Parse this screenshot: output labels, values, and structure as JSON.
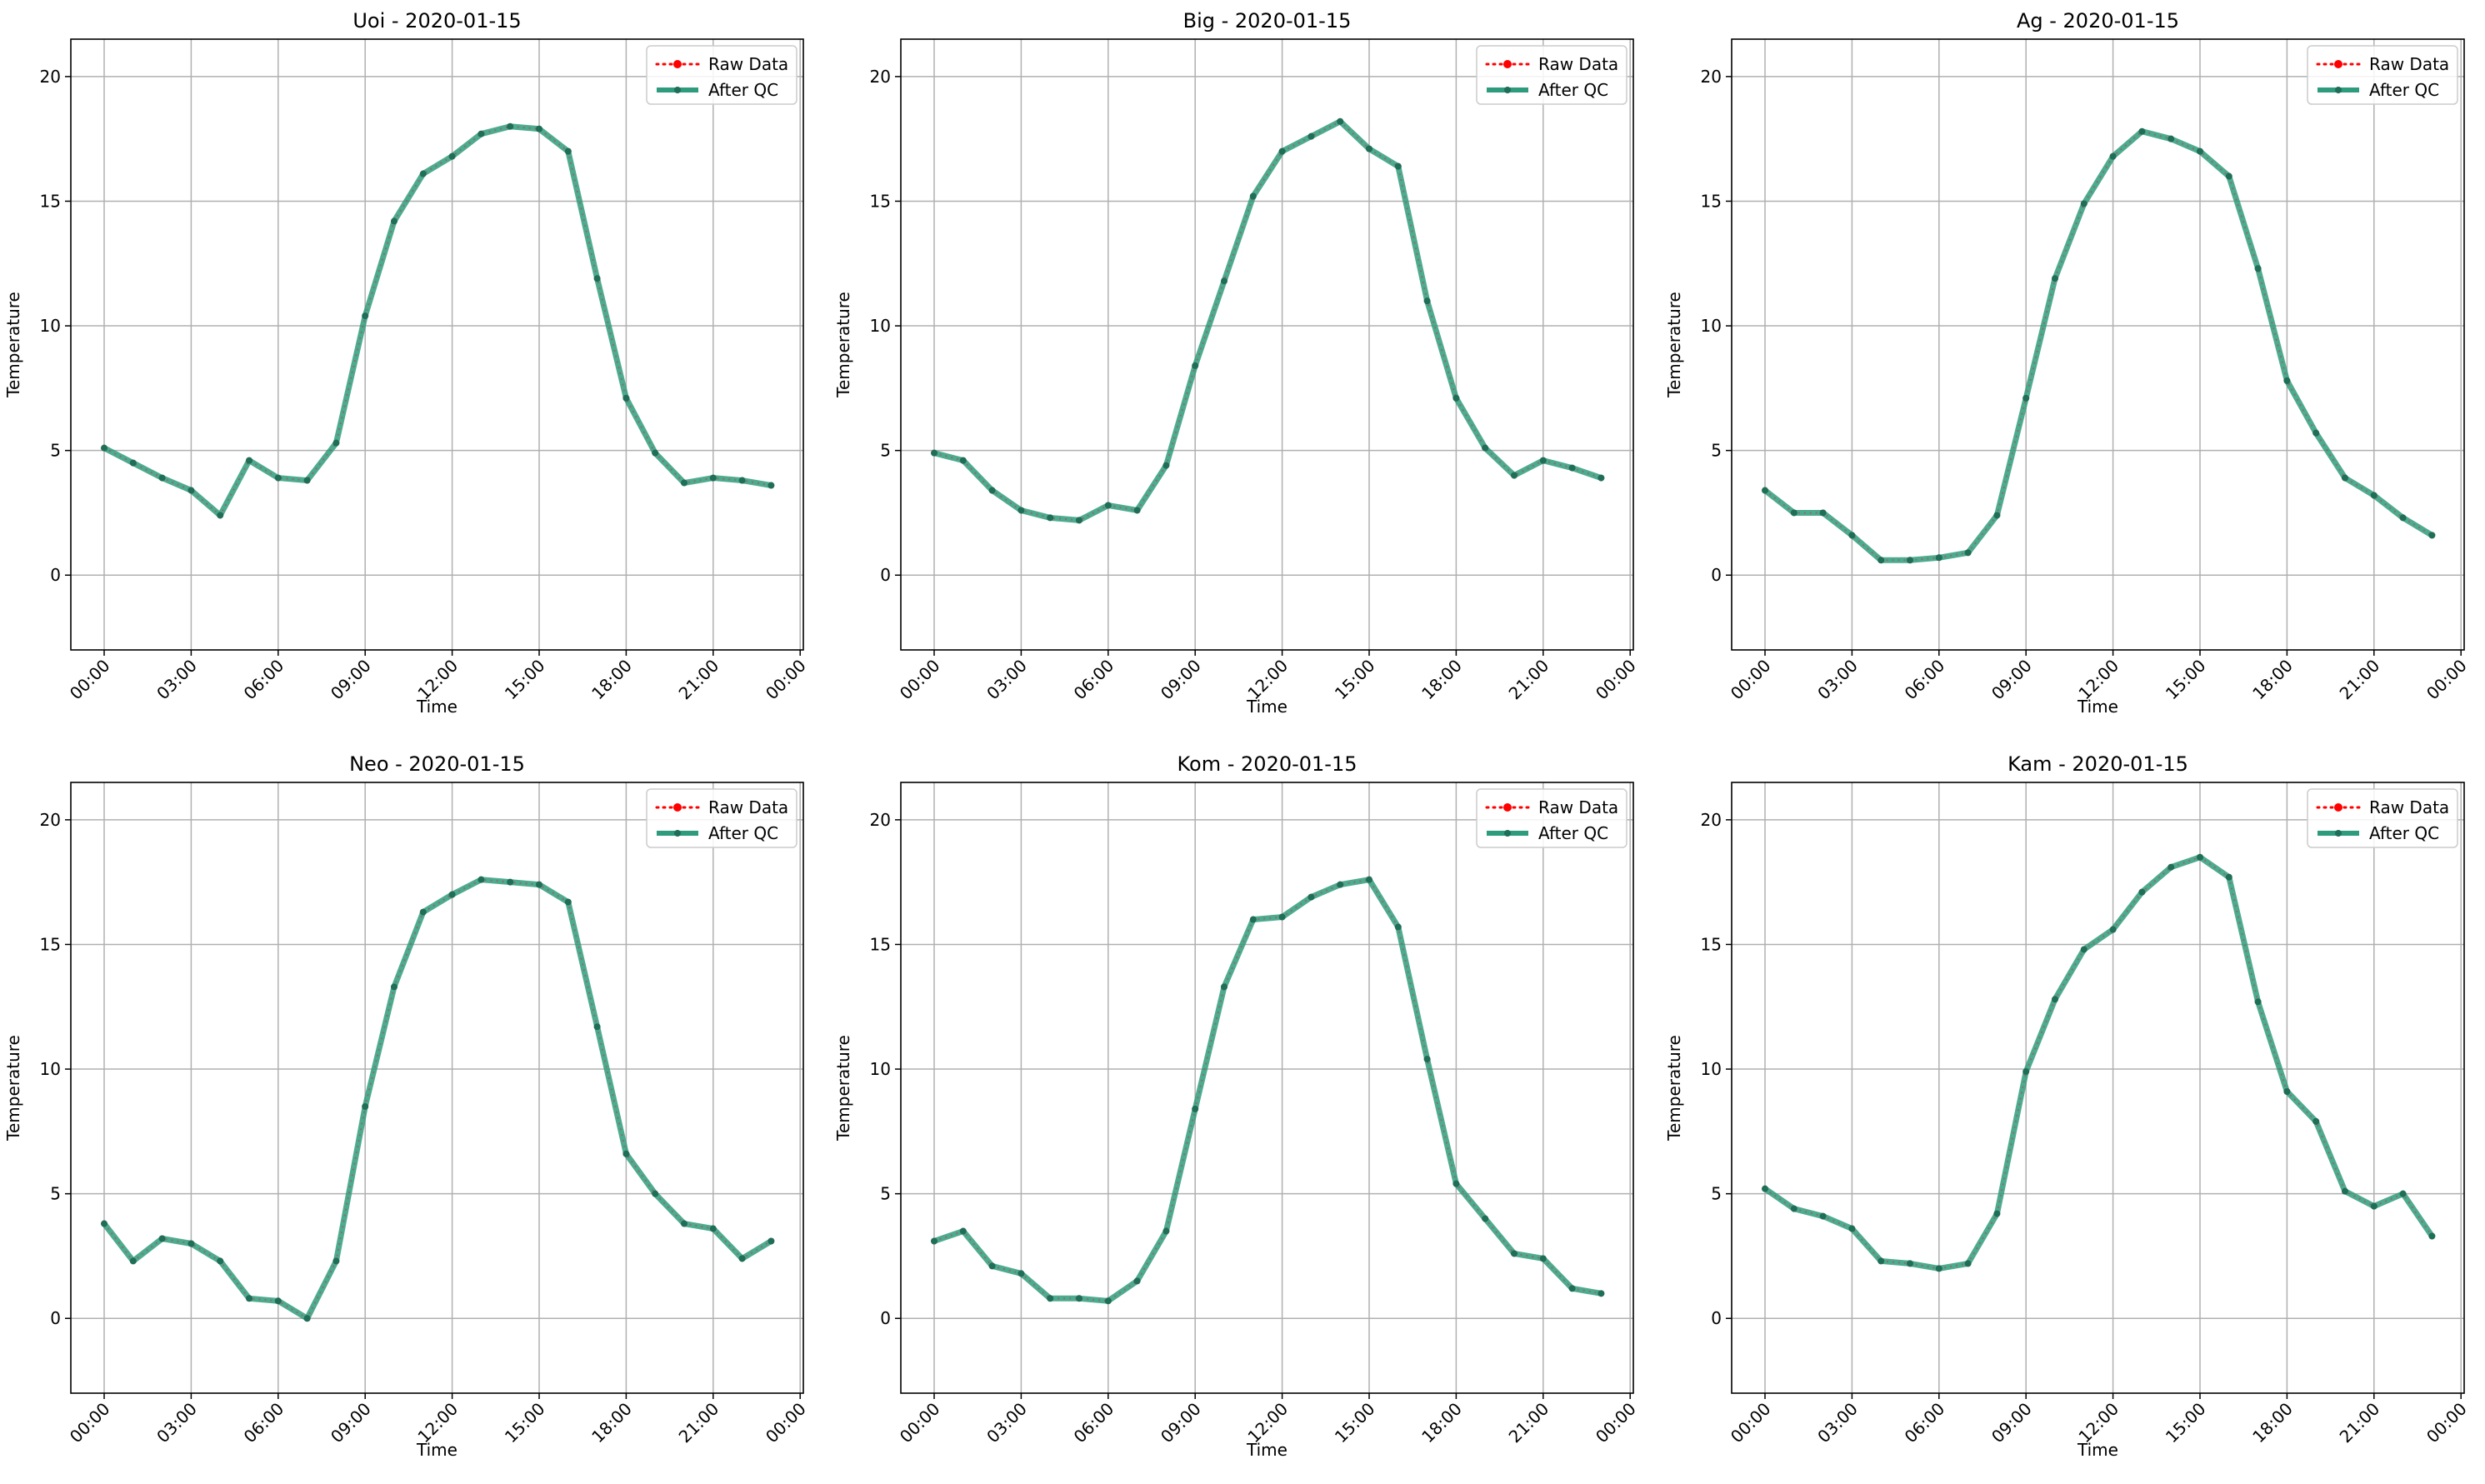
{
  "figure": {
    "series_names": [
      "Raw Data",
      "After QC"
    ],
    "colors": {
      "raw": "#ff0000",
      "qc": "#2e9c7c",
      "qc_marker": "#1f6e57",
      "grid": "#b0b0b0",
      "axis": "#000000"
    }
  },
  "chart_data": [
    {
      "type": "line",
      "title": "Uoi - 2020-01-15",
      "xlabel": "Time",
      "ylabel": "Temperature",
      "x_ticks": [
        "00:00",
        "03:00",
        "06:00",
        "09:00",
        "12:00",
        "15:00",
        "18:00",
        "21:00",
        "00:00"
      ],
      "y_ticks": [
        "0",
        "5",
        "10",
        "15",
        "20"
      ],
      "ylim": [
        -3,
        21.5
      ],
      "grid": true,
      "legend": "top-right",
      "x": [
        "00:00",
        "01:00",
        "02:00",
        "03:00",
        "04:00",
        "05:00",
        "06:00",
        "07:00",
        "08:00",
        "09:00",
        "10:00",
        "11:00",
        "12:00",
        "13:00",
        "14:00",
        "15:00",
        "16:00",
        "17:00",
        "18:00",
        "19:00",
        "20:00",
        "21:00",
        "22:00",
        "23:00"
      ],
      "series": [
        {
          "name": "Raw Data",
          "values": [
            5.1,
            4.5,
            3.9,
            3.4,
            2.4,
            4.6,
            3.9,
            3.8,
            5.3,
            10.4,
            14.2,
            16.1,
            16.8,
            17.7,
            18.0,
            17.9,
            17.0,
            11.9,
            7.1,
            4.9,
            3.7,
            3.9,
            3.8,
            3.6
          ]
        },
        {
          "name": "After QC",
          "values": [
            5.1,
            4.5,
            3.9,
            3.4,
            2.4,
            4.6,
            3.9,
            3.8,
            5.3,
            10.4,
            14.2,
            16.1,
            16.8,
            17.7,
            18.0,
            17.9,
            17.0,
            11.9,
            7.1,
            4.9,
            3.7,
            3.9,
            3.8,
            3.6
          ]
        }
      ]
    },
    {
      "type": "line",
      "title": "Big - 2020-01-15",
      "xlabel": "Time",
      "ylabel": "Temperature",
      "x_ticks": [
        "00:00",
        "03:00",
        "06:00",
        "09:00",
        "12:00",
        "15:00",
        "18:00",
        "21:00",
        "00:00"
      ],
      "y_ticks": [
        "0",
        "5",
        "10",
        "15",
        "20"
      ],
      "ylim": [
        -3,
        21.5
      ],
      "grid": true,
      "legend": "top-right",
      "x": [
        "00:00",
        "01:00",
        "02:00",
        "03:00",
        "04:00",
        "05:00",
        "06:00",
        "07:00",
        "08:00",
        "09:00",
        "10:00",
        "11:00",
        "12:00",
        "13:00",
        "14:00",
        "15:00",
        "16:00",
        "17:00",
        "18:00",
        "19:00",
        "20:00",
        "21:00",
        "22:00",
        "23:00"
      ],
      "series": [
        {
          "name": "Raw Data",
          "values": [
            4.9,
            4.6,
            3.4,
            2.6,
            2.3,
            2.2,
            2.8,
            2.6,
            4.4,
            8.4,
            11.8,
            15.2,
            17.0,
            17.6,
            18.2,
            17.1,
            16.4,
            11.0,
            7.1,
            5.1,
            4.0,
            4.6,
            4.3,
            3.9
          ]
        },
        {
          "name": "After QC",
          "values": [
            4.9,
            4.6,
            3.4,
            2.6,
            2.3,
            2.2,
            2.8,
            2.6,
            4.4,
            8.4,
            11.8,
            15.2,
            17.0,
            17.6,
            18.2,
            17.1,
            16.4,
            11.0,
            7.1,
            5.1,
            4.0,
            4.6,
            4.3,
            3.9
          ]
        }
      ]
    },
    {
      "type": "line",
      "title": "Ag - 2020-01-15",
      "xlabel": "Time",
      "ylabel": "Temperature",
      "x_ticks": [
        "00:00",
        "03:00",
        "06:00",
        "09:00",
        "12:00",
        "15:00",
        "18:00",
        "21:00",
        "00:00"
      ],
      "y_ticks": [
        "0",
        "5",
        "10",
        "15",
        "20"
      ],
      "ylim": [
        -3,
        21.5
      ],
      "grid": true,
      "legend": "top-right",
      "x": [
        "00:00",
        "01:00",
        "02:00",
        "03:00",
        "04:00",
        "05:00",
        "06:00",
        "07:00",
        "08:00",
        "09:00",
        "10:00",
        "11:00",
        "12:00",
        "13:00",
        "14:00",
        "15:00",
        "16:00",
        "17:00",
        "18:00",
        "19:00",
        "20:00",
        "21:00",
        "22:00",
        "23:00"
      ],
      "series": [
        {
          "name": "Raw Data",
          "values": [
            3.4,
            2.5,
            2.5,
            1.6,
            0.6,
            0.6,
            0.7,
            0.9,
            2.4,
            7.1,
            11.9,
            14.9,
            16.8,
            17.8,
            17.5,
            17.0,
            16.0,
            12.3,
            7.8,
            5.7,
            3.9,
            3.2,
            2.3,
            1.6
          ]
        },
        {
          "name": "After QC",
          "values": [
            3.4,
            2.5,
            2.5,
            1.6,
            0.6,
            0.6,
            0.7,
            0.9,
            2.4,
            7.1,
            11.9,
            14.9,
            16.8,
            17.8,
            17.5,
            17.0,
            16.0,
            12.3,
            7.8,
            5.7,
            3.9,
            3.2,
            2.3,
            1.6
          ]
        }
      ]
    },
    {
      "type": "line",
      "title": "Neo - 2020-01-15",
      "xlabel": "Time",
      "ylabel": "Temperature",
      "x_ticks": [
        "00:00",
        "03:00",
        "06:00",
        "09:00",
        "12:00",
        "15:00",
        "18:00",
        "21:00",
        "00:00"
      ],
      "y_ticks": [
        "0",
        "5",
        "10",
        "15",
        "20"
      ],
      "ylim": [
        -3,
        21.5
      ],
      "grid": true,
      "legend": "top-right",
      "x": [
        "00:00",
        "01:00",
        "02:00",
        "03:00",
        "04:00",
        "05:00",
        "06:00",
        "07:00",
        "08:00",
        "09:00",
        "10:00",
        "11:00",
        "12:00",
        "13:00",
        "14:00",
        "15:00",
        "16:00",
        "17:00",
        "18:00",
        "19:00",
        "20:00",
        "21:00",
        "22:00",
        "23:00"
      ],
      "series": [
        {
          "name": "Raw Data",
          "values": [
            3.8,
            2.3,
            3.2,
            3.0,
            2.3,
            0.8,
            0.7,
            0.0,
            2.3,
            8.5,
            13.3,
            16.3,
            17.0,
            17.6,
            17.5,
            17.4,
            16.7,
            11.7,
            6.6,
            5.0,
            3.8,
            3.6,
            2.4,
            3.1
          ]
        },
        {
          "name": "After QC",
          "values": [
            3.8,
            2.3,
            3.2,
            3.0,
            2.3,
            0.8,
            0.7,
            0.0,
            2.3,
            8.5,
            13.3,
            16.3,
            17.0,
            17.6,
            17.5,
            17.4,
            16.7,
            11.7,
            6.6,
            5.0,
            3.8,
            3.6,
            2.4,
            3.1
          ]
        }
      ]
    },
    {
      "type": "line",
      "title": "Kom - 2020-01-15",
      "xlabel": "Time",
      "ylabel": "Temperature",
      "x_ticks": [
        "00:00",
        "03:00",
        "06:00",
        "09:00",
        "12:00",
        "15:00",
        "18:00",
        "21:00",
        "00:00"
      ],
      "y_ticks": [
        "0",
        "5",
        "10",
        "15",
        "20"
      ],
      "ylim": [
        -3,
        21.5
      ],
      "grid": true,
      "legend": "top-right",
      "x": [
        "00:00",
        "01:00",
        "02:00",
        "03:00",
        "04:00",
        "05:00",
        "06:00",
        "07:00",
        "08:00",
        "09:00",
        "10:00",
        "11:00",
        "12:00",
        "13:00",
        "14:00",
        "15:00",
        "16:00",
        "17:00",
        "18:00",
        "19:00",
        "20:00",
        "21:00",
        "22:00",
        "23:00"
      ],
      "series": [
        {
          "name": "Raw Data",
          "values": [
            3.1,
            3.5,
            2.1,
            1.8,
            0.8,
            0.8,
            0.7,
            1.5,
            3.5,
            8.4,
            13.3,
            16.0,
            16.1,
            16.9,
            17.4,
            17.6,
            15.7,
            10.4,
            5.4,
            4.0,
            2.6,
            2.4,
            1.2,
            1.0
          ]
        },
        {
          "name": "After QC",
          "values": [
            3.1,
            3.5,
            2.1,
            1.8,
            0.8,
            0.8,
            0.7,
            1.5,
            3.5,
            8.4,
            13.3,
            16.0,
            16.1,
            16.9,
            17.4,
            17.6,
            15.7,
            10.4,
            5.4,
            4.0,
            2.6,
            2.4,
            1.2,
            1.0
          ]
        }
      ]
    },
    {
      "type": "line",
      "title": "Kam - 2020-01-15",
      "xlabel": "Time",
      "ylabel": "Temperature",
      "x_ticks": [
        "00:00",
        "03:00",
        "06:00",
        "09:00",
        "12:00",
        "15:00",
        "18:00",
        "21:00",
        "00:00"
      ],
      "y_ticks": [
        "0",
        "5",
        "10",
        "15",
        "20"
      ],
      "ylim": [
        -3,
        21.5
      ],
      "grid": true,
      "legend": "top-right",
      "x": [
        "00:00",
        "01:00",
        "02:00",
        "03:00",
        "04:00",
        "05:00",
        "06:00",
        "07:00",
        "08:00",
        "09:00",
        "10:00",
        "11:00",
        "12:00",
        "13:00",
        "14:00",
        "15:00",
        "16:00",
        "17:00",
        "18:00",
        "19:00",
        "20:00",
        "21:00",
        "22:00",
        "23:00"
      ],
      "series": [
        {
          "name": "Raw Data",
          "values": [
            5.2,
            4.4,
            4.1,
            3.6,
            2.3,
            2.2,
            2.0,
            2.2,
            4.2,
            9.9,
            12.8,
            14.8,
            15.6,
            17.1,
            18.1,
            18.5,
            17.7,
            12.7,
            9.1,
            7.9,
            5.1,
            4.5,
            5.0,
            3.3
          ]
        },
        {
          "name": "After QC",
          "values": [
            5.2,
            4.4,
            4.1,
            3.6,
            2.3,
            2.2,
            2.0,
            2.2,
            4.2,
            9.9,
            12.8,
            14.8,
            15.6,
            17.1,
            18.1,
            18.5,
            17.7,
            12.7,
            9.1,
            7.9,
            5.1,
            4.5,
            5.0,
            3.3
          ]
        }
      ]
    }
  ]
}
